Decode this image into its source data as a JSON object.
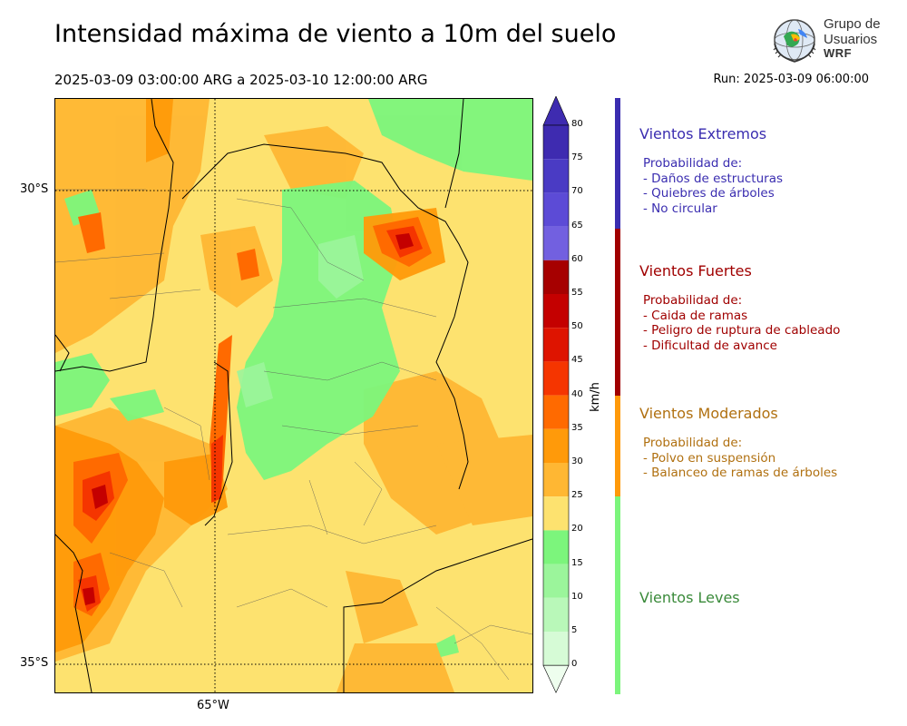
{
  "title": "Intensidad máxima de viento a 10m del suelo",
  "subtitle": "2025-03-09 03:00:00 ARG  a  2025-03-10 12:00:00 ARG",
  "run": "Run: 2025-03-09 06:00:00",
  "logo": {
    "line1": "Grupo de",
    "line2": "Usuarios",
    "line3": "WRF"
  },
  "map": {
    "lat_labels": [
      "30°S",
      "35°S"
    ],
    "lon_labels": [
      "65°W"
    ]
  },
  "colorbar": {
    "unit": "km/h",
    "ticks": [
      "80",
      "75",
      "70",
      "65",
      "60",
      "55",
      "50",
      "45",
      "40",
      "35",
      "30",
      "25",
      "20",
      "15",
      "10",
      "5",
      "0"
    ],
    "colors": [
      "#3e2bb0",
      "#4a3bc4",
      "#5c4bd6",
      "#7260e0",
      "#a60000",
      "#c40000",
      "#de1400",
      "#f53500",
      "#ff6a00",
      "#ff9a0a",
      "#ffb733",
      "#fde26f",
      "#7cf57c",
      "#9bf59b",
      "#b9f8b9",
      "#d6fbd6",
      "#eefeee"
    ]
  },
  "categories": [
    {
      "title": "Vientos Extremos",
      "color": "#3a2db0",
      "lines": [
        "Probabilidad de:",
        "- Daños de estructuras",
        "- Quiebres de árboles",
        "- No circular"
      ]
    },
    {
      "title": "Vientos Fuertes",
      "color": "#a00000",
      "lines": [
        "Probabilidad de:",
        "- Caida de ramas",
        "- Peligro de ruptura de cableado",
        "- Dificultad de avance"
      ]
    },
    {
      "title": "Vientos Moderados",
      "color": "#b07010",
      "lines": [
        "Probabilidad de:",
        "- Polvo en suspensión",
        "- Balanceo de ramas de árboles"
      ]
    },
    {
      "title": "Vientos Leves",
      "color": "#3a8a3a",
      "lines": []
    }
  ]
}
